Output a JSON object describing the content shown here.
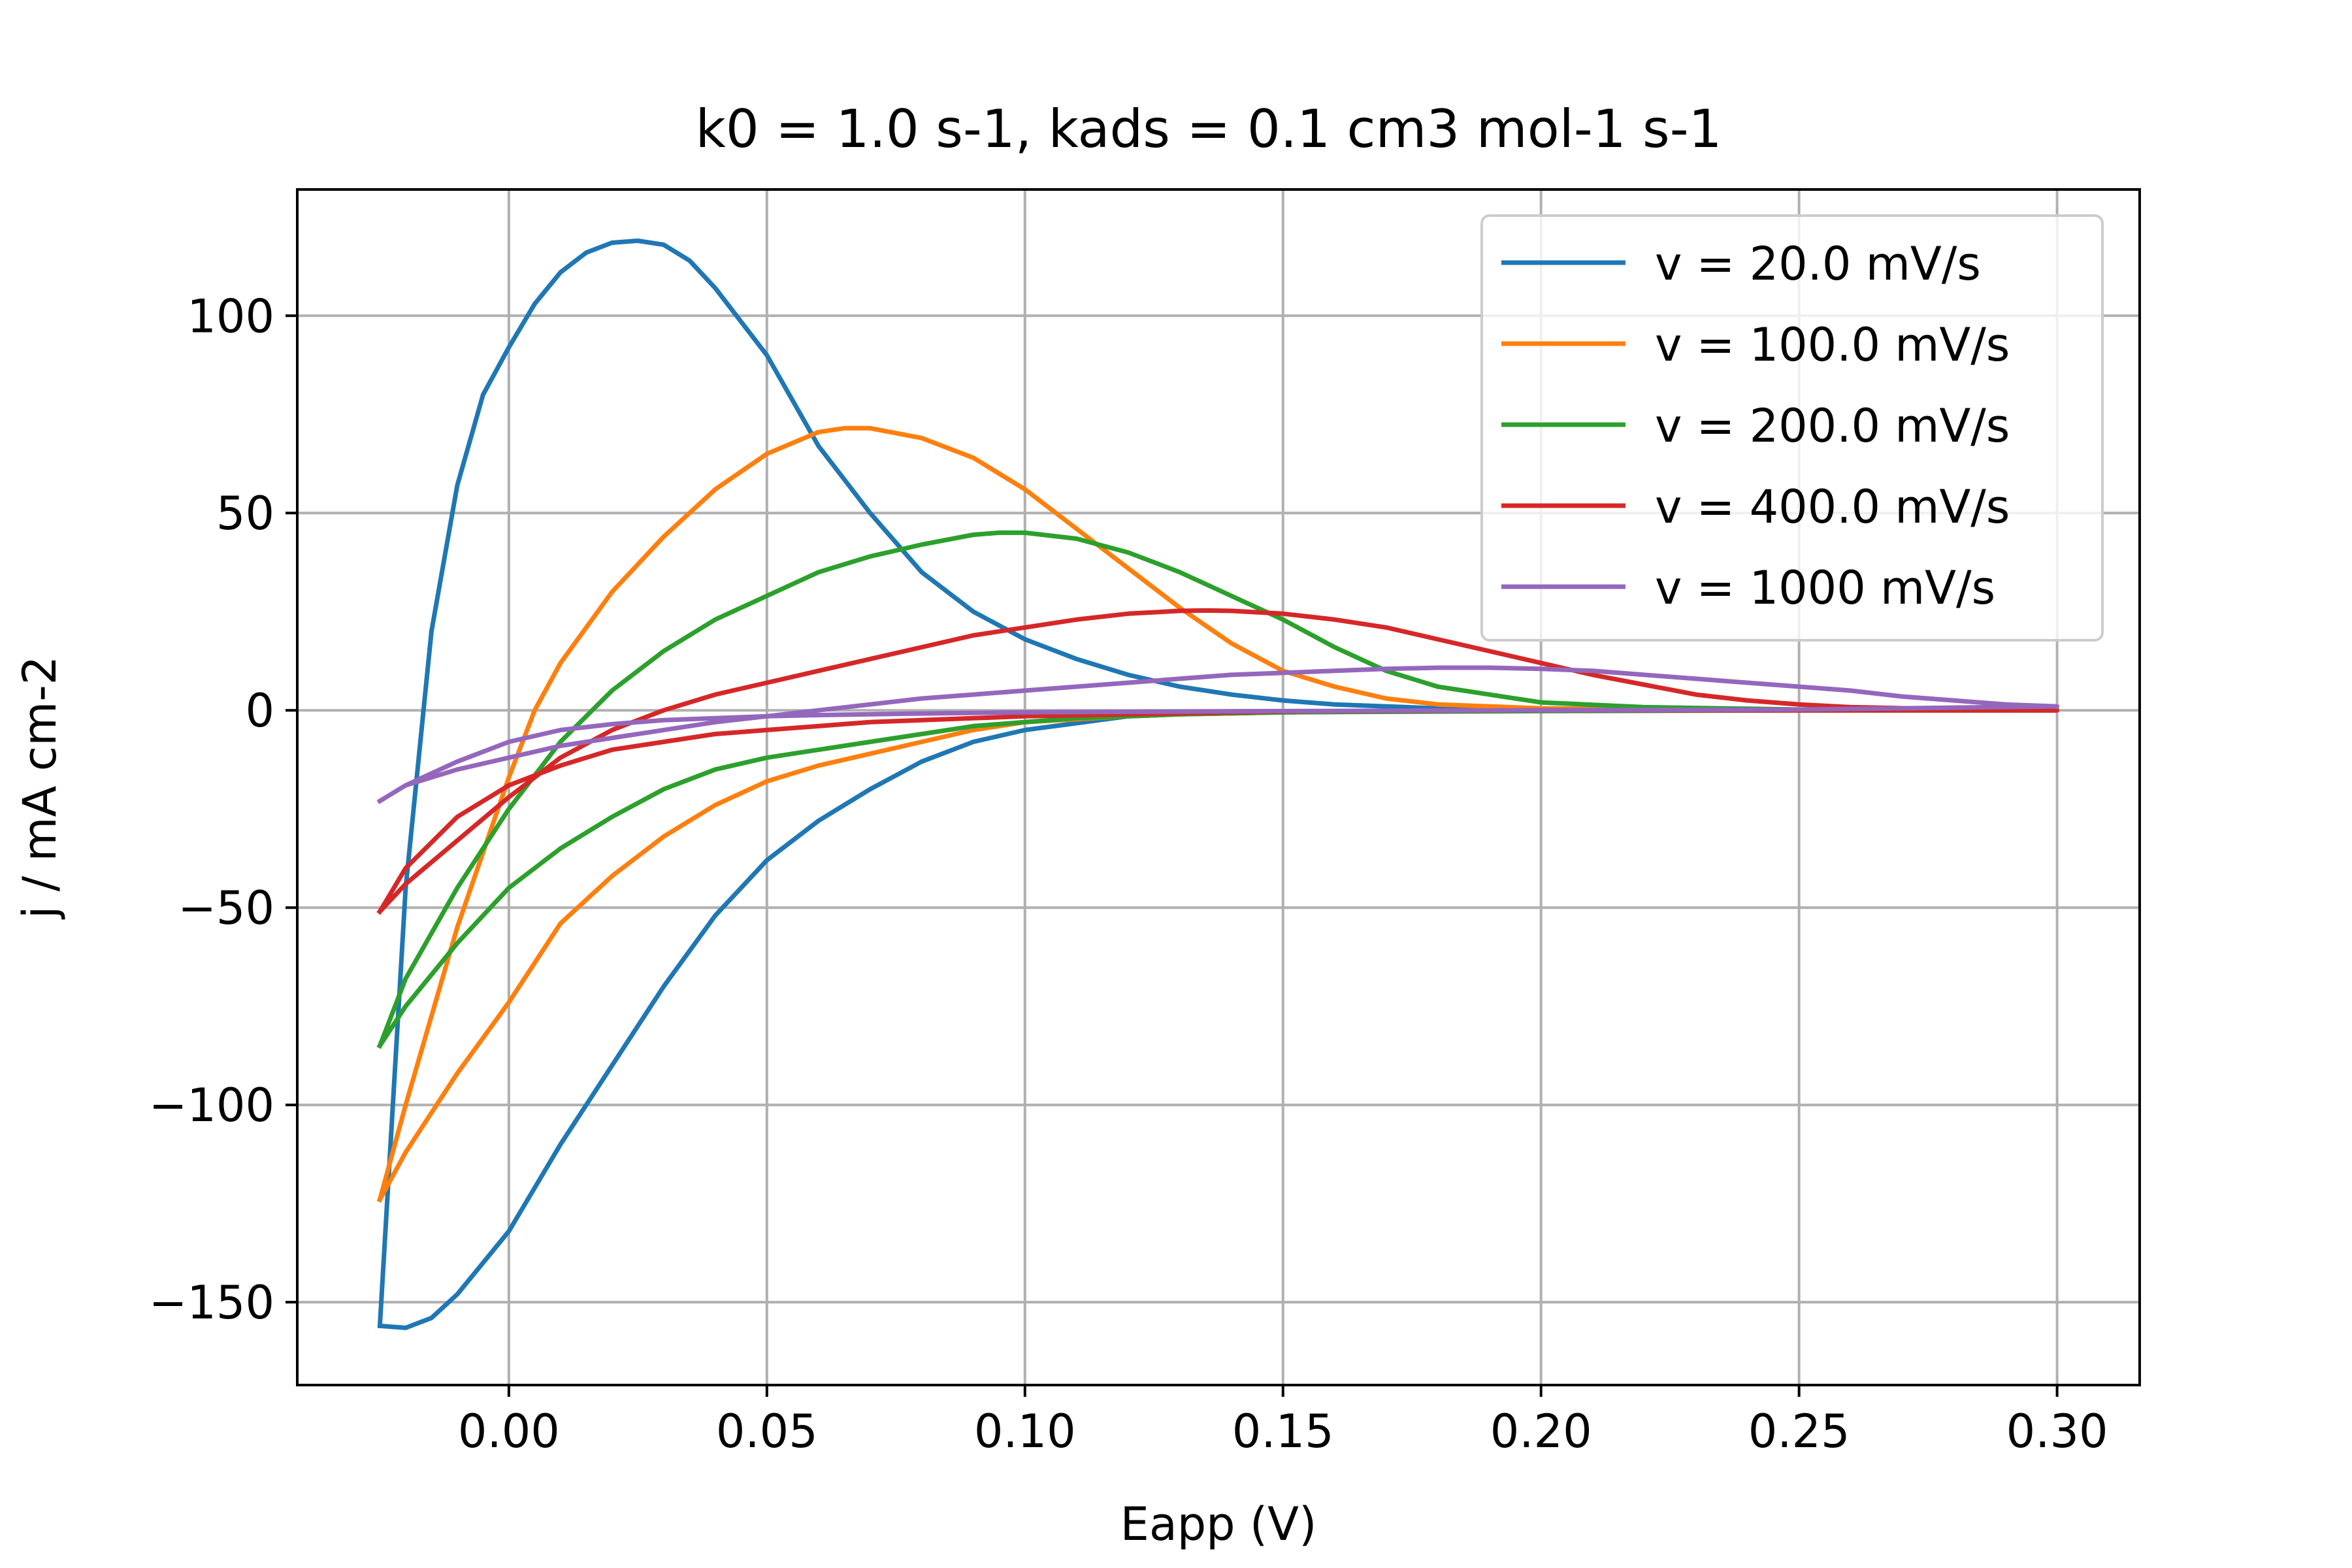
{
  "chart_data": {
    "type": "line",
    "title": "k0 = 1.0 s-1, kads = 0.1 cm3 mol-1 s-1",
    "xlabel": "Eapp (V)",
    "ylabel": "j / mA cm-2",
    "xlim": [
      -0.041,
      0.316
    ],
    "ylim": [
      -171,
      132
    ],
    "xticks": [
      0.0,
      0.05,
      0.1,
      0.15,
      0.2,
      0.25,
      0.3
    ],
    "xtick_labels": [
      "0.00",
      "0.05",
      "0.10",
      "0.15",
      "0.20",
      "0.25",
      "0.30"
    ],
    "yticks": [
      100,
      50,
      0,
      -50,
      -100,
      -150
    ],
    "ytick_labels": [
      "100",
      "50",
      "0",
      "−50",
      "−100",
      "−150"
    ],
    "grid": true,
    "legend_position": "top-right",
    "series": [
      {
        "name": "v = 20.0 mV/s",
        "color": "#1f77b4",
        "forward": [
          [
            -0.025,
            -156
          ],
          [
            -0.02,
            -45
          ],
          [
            -0.015,
            20
          ],
          [
            -0.01,
            57
          ],
          [
            -0.005,
            80
          ],
          [
            0.0,
            92
          ],
          [
            0.005,
            103
          ],
          [
            0.01,
            111
          ],
          [
            0.015,
            116
          ],
          [
            0.02,
            118.5
          ],
          [
            0.025,
            119
          ],
          [
            0.03,
            118
          ],
          [
            0.035,
            114
          ],
          [
            0.04,
            107
          ],
          [
            0.05,
            90
          ],
          [
            0.06,
            67
          ],
          [
            0.07,
            50
          ],
          [
            0.08,
            35
          ],
          [
            0.09,
            25
          ],
          [
            0.1,
            18
          ],
          [
            0.11,
            13
          ],
          [
            0.12,
            9
          ],
          [
            0.13,
            6
          ],
          [
            0.14,
            4
          ],
          [
            0.15,
            2.5
          ],
          [
            0.16,
            1.5
          ],
          [
            0.18,
            0.5
          ],
          [
            0.2,
            0.2
          ],
          [
            0.25,
            0
          ],
          [
            0.3,
            0
          ]
        ],
        "reverse": [
          [
            0.3,
            0
          ],
          [
            0.2,
            0
          ],
          [
            0.15,
            -0.5
          ],
          [
            0.13,
            -1
          ],
          [
            0.12,
            -1.5
          ],
          [
            0.1,
            -5
          ],
          [
            0.09,
            -8
          ],
          [
            0.08,
            -13
          ],
          [
            0.07,
            -20
          ],
          [
            0.06,
            -28
          ],
          [
            0.05,
            -38
          ],
          [
            0.04,
            -52
          ],
          [
            0.03,
            -70
          ],
          [
            0.02,
            -90
          ],
          [
            0.01,
            -110
          ],
          [
            0.0,
            -132
          ],
          [
            -0.01,
            -148
          ],
          [
            -0.015,
            -154
          ],
          [
            -0.02,
            -156.5
          ],
          [
            -0.025,
            -156
          ]
        ]
      },
      {
        "name": "v = 100.0 mV/s",
        "color": "#ff7f0e",
        "forward": [
          [
            -0.025,
            -124
          ],
          [
            -0.02,
            -100
          ],
          [
            -0.01,
            -55
          ],
          [
            0.0,
            -17
          ],
          [
            0.005,
            0
          ],
          [
            0.01,
            12
          ],
          [
            0.02,
            30
          ],
          [
            0.03,
            44
          ],
          [
            0.04,
            56
          ],
          [
            0.05,
            65
          ],
          [
            0.06,
            70.5
          ],
          [
            0.065,
            71.5
          ],
          [
            0.07,
            71.5
          ],
          [
            0.08,
            69
          ],
          [
            0.09,
            64
          ],
          [
            0.1,
            56
          ],
          [
            0.11,
            46
          ],
          [
            0.12,
            36
          ],
          [
            0.13,
            26
          ],
          [
            0.14,
            17
          ],
          [
            0.15,
            10
          ],
          [
            0.16,
            6
          ],
          [
            0.17,
            3
          ],
          [
            0.18,
            1.5
          ],
          [
            0.2,
            0.5
          ],
          [
            0.25,
            0
          ],
          [
            0.3,
            0
          ]
        ],
        "reverse": [
          [
            0.3,
            0
          ],
          [
            0.2,
            0
          ],
          [
            0.15,
            -0.5
          ],
          [
            0.13,
            -1
          ],
          [
            0.12,
            -1.5
          ],
          [
            0.1,
            -3
          ],
          [
            0.09,
            -5
          ],
          [
            0.08,
            -8
          ],
          [
            0.07,
            -11
          ],
          [
            0.06,
            -14
          ],
          [
            0.05,
            -18
          ],
          [
            0.04,
            -24
          ],
          [
            0.03,
            -32
          ],
          [
            0.02,
            -42
          ],
          [
            0.01,
            -54
          ],
          [
            0.0,
            -74
          ],
          [
            -0.01,
            -92
          ],
          [
            -0.02,
            -112
          ],
          [
            -0.025,
            -124
          ]
        ]
      },
      {
        "name": "v = 200.0 mV/s",
        "color": "#2ca02c",
        "forward": [
          [
            -0.025,
            -85
          ],
          [
            -0.02,
            -68
          ],
          [
            -0.01,
            -45
          ],
          [
            0.0,
            -25
          ],
          [
            0.01,
            -8
          ],
          [
            0.02,
            5
          ],
          [
            0.03,
            15
          ],
          [
            0.04,
            23
          ],
          [
            0.05,
            29
          ],
          [
            0.06,
            35
          ],
          [
            0.07,
            39
          ],
          [
            0.08,
            42
          ],
          [
            0.09,
            44.5
          ],
          [
            0.095,
            45
          ],
          [
            0.1,
            45
          ],
          [
            0.11,
            43.5
          ],
          [
            0.12,
            40
          ],
          [
            0.13,
            35
          ],
          [
            0.14,
            29
          ],
          [
            0.15,
            23
          ],
          [
            0.16,
            16
          ],
          [
            0.17,
            10
          ],
          [
            0.18,
            6
          ],
          [
            0.19,
            4
          ],
          [
            0.2,
            2
          ],
          [
            0.22,
            0.8
          ],
          [
            0.25,
            0.2
          ],
          [
            0.3,
            0
          ]
        ],
        "reverse": [
          [
            0.3,
            0
          ],
          [
            0.25,
            0
          ],
          [
            0.2,
            -0.2
          ],
          [
            0.15,
            -0.5
          ],
          [
            0.13,
            -1
          ],
          [
            0.11,
            -2
          ],
          [
            0.1,
            -3
          ],
          [
            0.09,
            -4
          ],
          [
            0.08,
            -6
          ],
          [
            0.07,
            -8
          ],
          [
            0.06,
            -10
          ],
          [
            0.05,
            -12
          ],
          [
            0.04,
            -15
          ],
          [
            0.03,
            -20
          ],
          [
            0.02,
            -27
          ],
          [
            0.01,
            -35
          ],
          [
            0.0,
            -45
          ],
          [
            -0.01,
            -59
          ],
          [
            -0.02,
            -75
          ],
          [
            -0.025,
            -85
          ]
        ]
      },
      {
        "name": "v = 400.0 mV/s",
        "color": "#d62728",
        "forward": [
          [
            -0.025,
            -51
          ],
          [
            -0.02,
            -44
          ],
          [
            -0.01,
            -33
          ],
          [
            0.0,
            -22
          ],
          [
            0.01,
            -12
          ],
          [
            0.02,
            -5
          ],
          [
            0.03,
            0
          ],
          [
            0.04,
            4
          ],
          [
            0.05,
            7
          ],
          [
            0.06,
            10
          ],
          [
            0.07,
            13
          ],
          [
            0.08,
            16
          ],
          [
            0.09,
            19
          ],
          [
            0.1,
            21
          ],
          [
            0.11,
            23
          ],
          [
            0.12,
            24.5
          ],
          [
            0.13,
            25.2
          ],
          [
            0.135,
            25.3
          ],
          [
            0.14,
            25.2
          ],
          [
            0.15,
            24.5
          ],
          [
            0.16,
            23
          ],
          [
            0.17,
            21
          ],
          [
            0.18,
            18
          ],
          [
            0.19,
            15
          ],
          [
            0.2,
            12
          ],
          [
            0.21,
            9
          ],
          [
            0.22,
            6.5
          ],
          [
            0.23,
            4
          ],
          [
            0.24,
            2.5
          ],
          [
            0.25,
            1.5
          ],
          [
            0.26,
            0.8
          ],
          [
            0.28,
            0.3
          ],
          [
            0.3,
            0
          ]
        ],
        "reverse": [
          [
            0.3,
            0
          ],
          [
            0.25,
            0
          ],
          [
            0.2,
            0
          ],
          [
            0.15,
            -0.3
          ],
          [
            0.12,
            -1
          ],
          [
            0.1,
            -1.5
          ],
          [
            0.09,
            -2
          ],
          [
            0.08,
            -2.5
          ],
          [
            0.07,
            -3
          ],
          [
            0.06,
            -4
          ],
          [
            0.05,
            -5
          ],
          [
            0.04,
            -6
          ],
          [
            0.03,
            -8
          ],
          [
            0.02,
            -10
          ],
          [
            0.01,
            -14
          ],
          [
            0.0,
            -19
          ],
          [
            -0.01,
            -27
          ],
          [
            -0.02,
            -40
          ],
          [
            -0.025,
            -51
          ]
        ]
      },
      {
        "name": "v = 1000 mV/s",
        "color": "#9467bd",
        "forward": [
          [
            -0.025,
            -23
          ],
          [
            -0.02,
            -19
          ],
          [
            -0.01,
            -15
          ],
          [
            0.0,
            -12
          ],
          [
            0.01,
            -9
          ],
          [
            0.02,
            -7
          ],
          [
            0.03,
            -5
          ],
          [
            0.04,
            -3
          ],
          [
            0.05,
            -1.5
          ],
          [
            0.06,
            0
          ],
          [
            0.07,
            1.5
          ],
          [
            0.08,
            3
          ],
          [
            0.09,
            4
          ],
          [
            0.1,
            5
          ],
          [
            0.11,
            6
          ],
          [
            0.12,
            7
          ],
          [
            0.13,
            8
          ],
          [
            0.14,
            9
          ],
          [
            0.15,
            9.5
          ],
          [
            0.16,
            10
          ],
          [
            0.17,
            10.5
          ],
          [
            0.18,
            10.8
          ],
          [
            0.19,
            10.8
          ],
          [
            0.2,
            10.5
          ],
          [
            0.21,
            10
          ],
          [
            0.22,
            9
          ],
          [
            0.23,
            8
          ],
          [
            0.24,
            7
          ],
          [
            0.25,
            6
          ],
          [
            0.26,
            5
          ],
          [
            0.27,
            3.5
          ],
          [
            0.28,
            2.5
          ],
          [
            0.29,
            1.5
          ],
          [
            0.3,
            1
          ]
        ],
        "reverse": [
          [
            0.3,
            1
          ],
          [
            0.25,
            0.2
          ],
          [
            0.2,
            0
          ],
          [
            0.15,
            -0.2
          ],
          [
            0.1,
            -0.5
          ],
          [
            0.08,
            -0.8
          ],
          [
            0.06,
            -1.2
          ],
          [
            0.05,
            -1.5
          ],
          [
            0.04,
            -2
          ],
          [
            0.03,
            -2.5
          ],
          [
            0.02,
            -3.5
          ],
          [
            0.01,
            -5
          ],
          [
            0.0,
            -8
          ],
          [
            -0.01,
            -13
          ],
          [
            -0.02,
            -19
          ],
          [
            -0.025,
            -23
          ]
        ]
      }
    ]
  }
}
